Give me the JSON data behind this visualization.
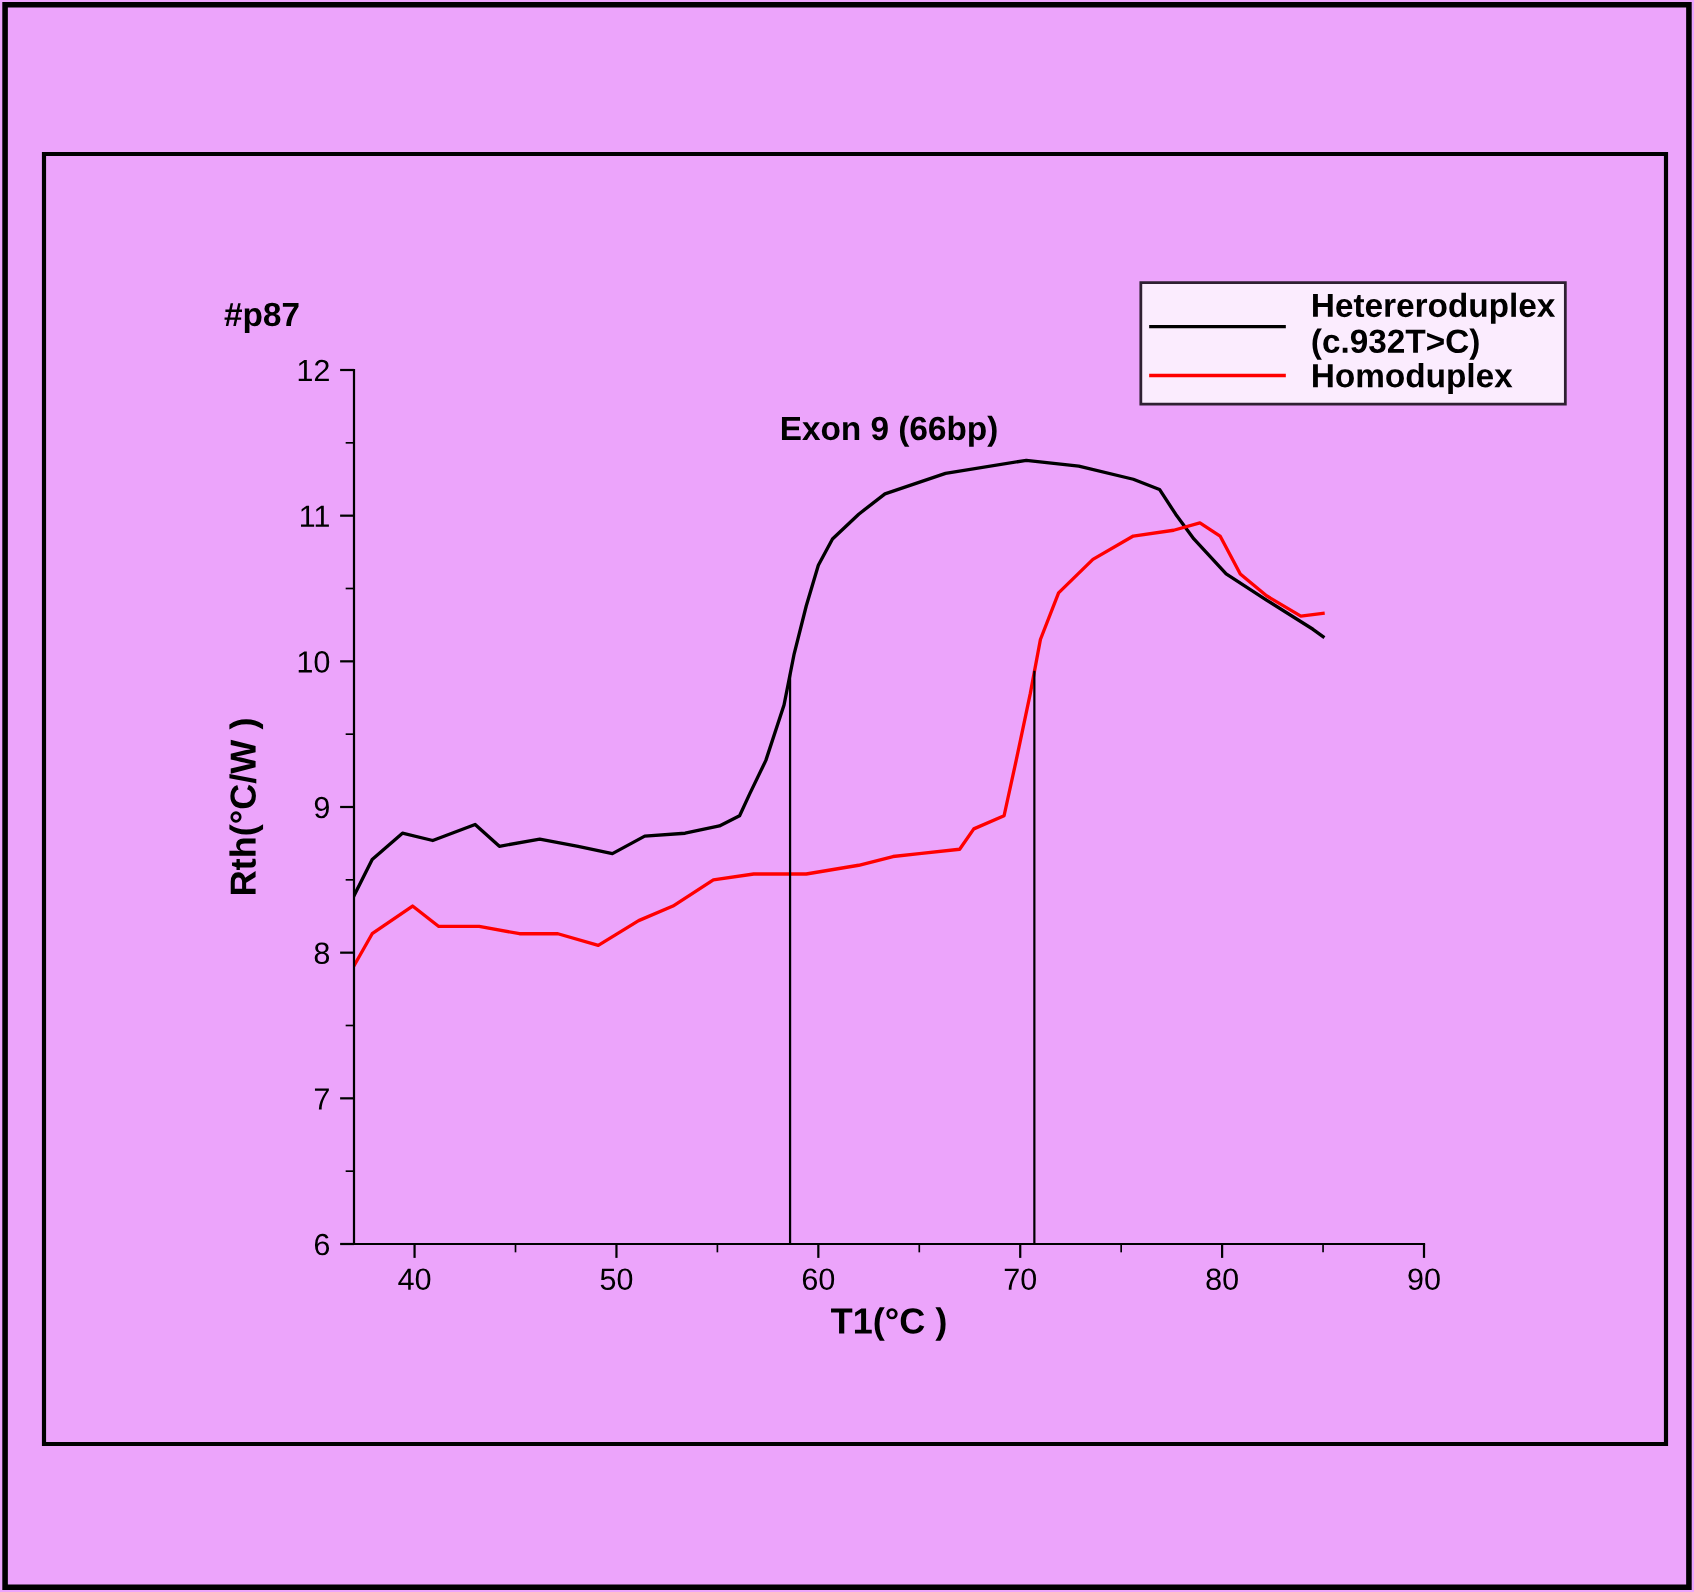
{
  "chart_data": {
    "type": "line",
    "title": "Exon 9 (66bp)",
    "xlabel": "T1(°C )",
    "ylabel": "Rth(°C/W )",
    "annotations": [
      "#p87"
    ],
    "xlim": [
      37,
      90
    ],
    "xticks": [
      40,
      50,
      60,
      70,
      80,
      90
    ],
    "ylim": [
      6,
      12
    ],
    "yticks": [
      6,
      7,
      8,
      9,
      10,
      11,
      12
    ],
    "grid": false,
    "legend": "top right",
    "series": [
      {
        "name": "Hetereroduplex\n(c.932T>C)",
        "color": "#000000",
        "x": [
          37.0,
          37.9,
          39.4,
          40.9,
          43.0,
          44.2,
          46.2,
          48.1,
          49.8,
          51.4,
          53.4,
          55.1,
          56.1,
          56.6,
          57.4,
          58.3,
          58.8,
          59.4,
          60.0,
          60.7,
          62.0,
          63.3,
          66.3,
          70.3,
          72.9,
          75.6,
          76.9,
          77.7,
          78.6,
          80.2,
          82.2,
          84.5,
          85.0
        ],
        "values": [
          8.39,
          8.64,
          8.82,
          8.77,
          8.88,
          8.73,
          8.78,
          8.73,
          8.68,
          8.8,
          8.82,
          8.87,
          8.94,
          9.09,
          9.32,
          9.7,
          10.05,
          10.38,
          10.66,
          10.84,
          11.01,
          11.15,
          11.29,
          11.38,
          11.34,
          11.25,
          11.18,
          11.01,
          10.84,
          10.6,
          10.42,
          10.22,
          10.17
        ]
      },
      {
        "name": "Homoduplex",
        "color": "#ff0000",
        "x": [
          37.0,
          37.9,
          39.9,
          41.2,
          43.2,
          45.2,
          47.1,
          49.1,
          51.1,
          52.8,
          54.8,
          56.8,
          59.4,
          62.0,
          63.7,
          65.0,
          67.0,
          67.7,
          69.2,
          69.8,
          70.5,
          71.0,
          71.9,
          73.6,
          75.6,
          77.6,
          78.9,
          79.9,
          80.9,
          82.2,
          83.9,
          85.0
        ],
        "values": [
          7.91,
          8.13,
          8.32,
          8.18,
          8.18,
          8.13,
          8.13,
          8.05,
          8.22,
          8.32,
          8.5,
          8.54,
          8.54,
          8.6,
          8.66,
          8.68,
          8.71,
          8.85,
          8.94,
          9.32,
          9.78,
          10.15,
          10.47,
          10.7,
          10.86,
          10.9,
          10.95,
          10.86,
          10.6,
          10.45,
          10.31,
          10.33
        ]
      }
    ],
    "ref_lines": [
      {
        "axis": "x",
        "value": 58.6,
        "color": "#000000"
      },
      {
        "axis": "x",
        "value": 70.7,
        "color": "#000000"
      }
    ]
  }
}
